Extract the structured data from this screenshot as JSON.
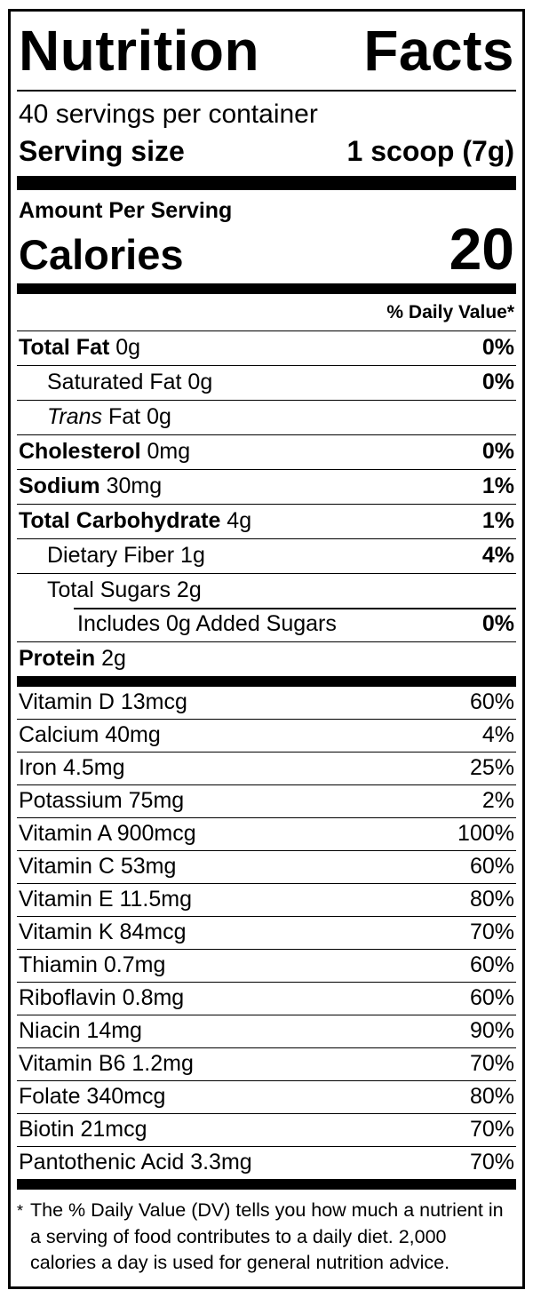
{
  "header": {
    "title": "Nutrition Facts",
    "servings_per_container": "40 servings per container",
    "serving_size_label": "Serving size",
    "serving_size_value": "1 scoop (7g)"
  },
  "calories": {
    "amount_per_serving": "Amount Per Serving",
    "label": "Calories",
    "value": "20"
  },
  "daily_value_header": "% Daily Value*",
  "main_rows": [
    {
      "name": "Total Fat",
      "rest": " 0g",
      "dv": "0%"
    },
    {
      "name": "",
      "rest": "Saturated Fat 0g",
      "dv": "0%"
    },
    {
      "italic": "Trans",
      "rest": " Fat 0g",
      "dv": ""
    },
    {
      "name": "Cholesterol",
      "rest": " 0mg",
      "dv": "0%"
    },
    {
      "name": "Sodium",
      "rest": " 30mg",
      "dv": "1%"
    },
    {
      "name": "Total Carbohydrate",
      "rest": " 4g",
      "dv": "1%"
    },
    {
      "name": "",
      "rest": "Dietary Fiber 1g",
      "dv": "4%"
    },
    {
      "name": "",
      "rest": "Total Sugars 2g",
      "dv": ""
    },
    {
      "name": "",
      "rest": "Includes 0g Added Sugars",
      "dv": "0%"
    },
    {
      "name": "Protein",
      "rest": " 2g",
      "dv": ""
    }
  ],
  "vitamin_rows": [
    {
      "name": "Vitamin D 13mcg",
      "dv": "60%"
    },
    {
      "name": "Calcium 40mg",
      "dv": "4%"
    },
    {
      "name": "Iron 4.5mg",
      "dv": "25%"
    },
    {
      "name": "Potassium 75mg",
      "dv": "2%"
    },
    {
      "name": "Vitamin A 900mcg",
      "dv": "100%"
    },
    {
      "name": "Vitamin C 53mg",
      "dv": "60%"
    },
    {
      "name": "Vitamin E 11.5mg",
      "dv": "80%"
    },
    {
      "name": "Vitamin K 84mcg",
      "dv": "70%"
    },
    {
      "name": "Thiamin 0.7mg",
      "dv": "60%"
    },
    {
      "name": "Riboflavin 0.8mg",
      "dv": "60%"
    },
    {
      "name": "Niacin 14mg",
      "dv": "90%"
    },
    {
      "name": "Vitamin B6 1.2mg",
      "dv": "70%"
    },
    {
      "name": "Folate 340mcg",
      "dv": "80%"
    },
    {
      "name": "Biotin 21mcg",
      "dv": "70%"
    },
    {
      "name": "Pantothenic Acid 3.3mg",
      "dv": "70%"
    }
  ],
  "footnote": {
    "asterisk": "*",
    "text": "The % Daily Value (DV) tells you how much a nutrient in a serving of food contributes to a daily diet. 2,000 calories a day is used for general nutrition advice."
  },
  "colors": {
    "ink": "#000000",
    "background": "#ffffff"
  }
}
